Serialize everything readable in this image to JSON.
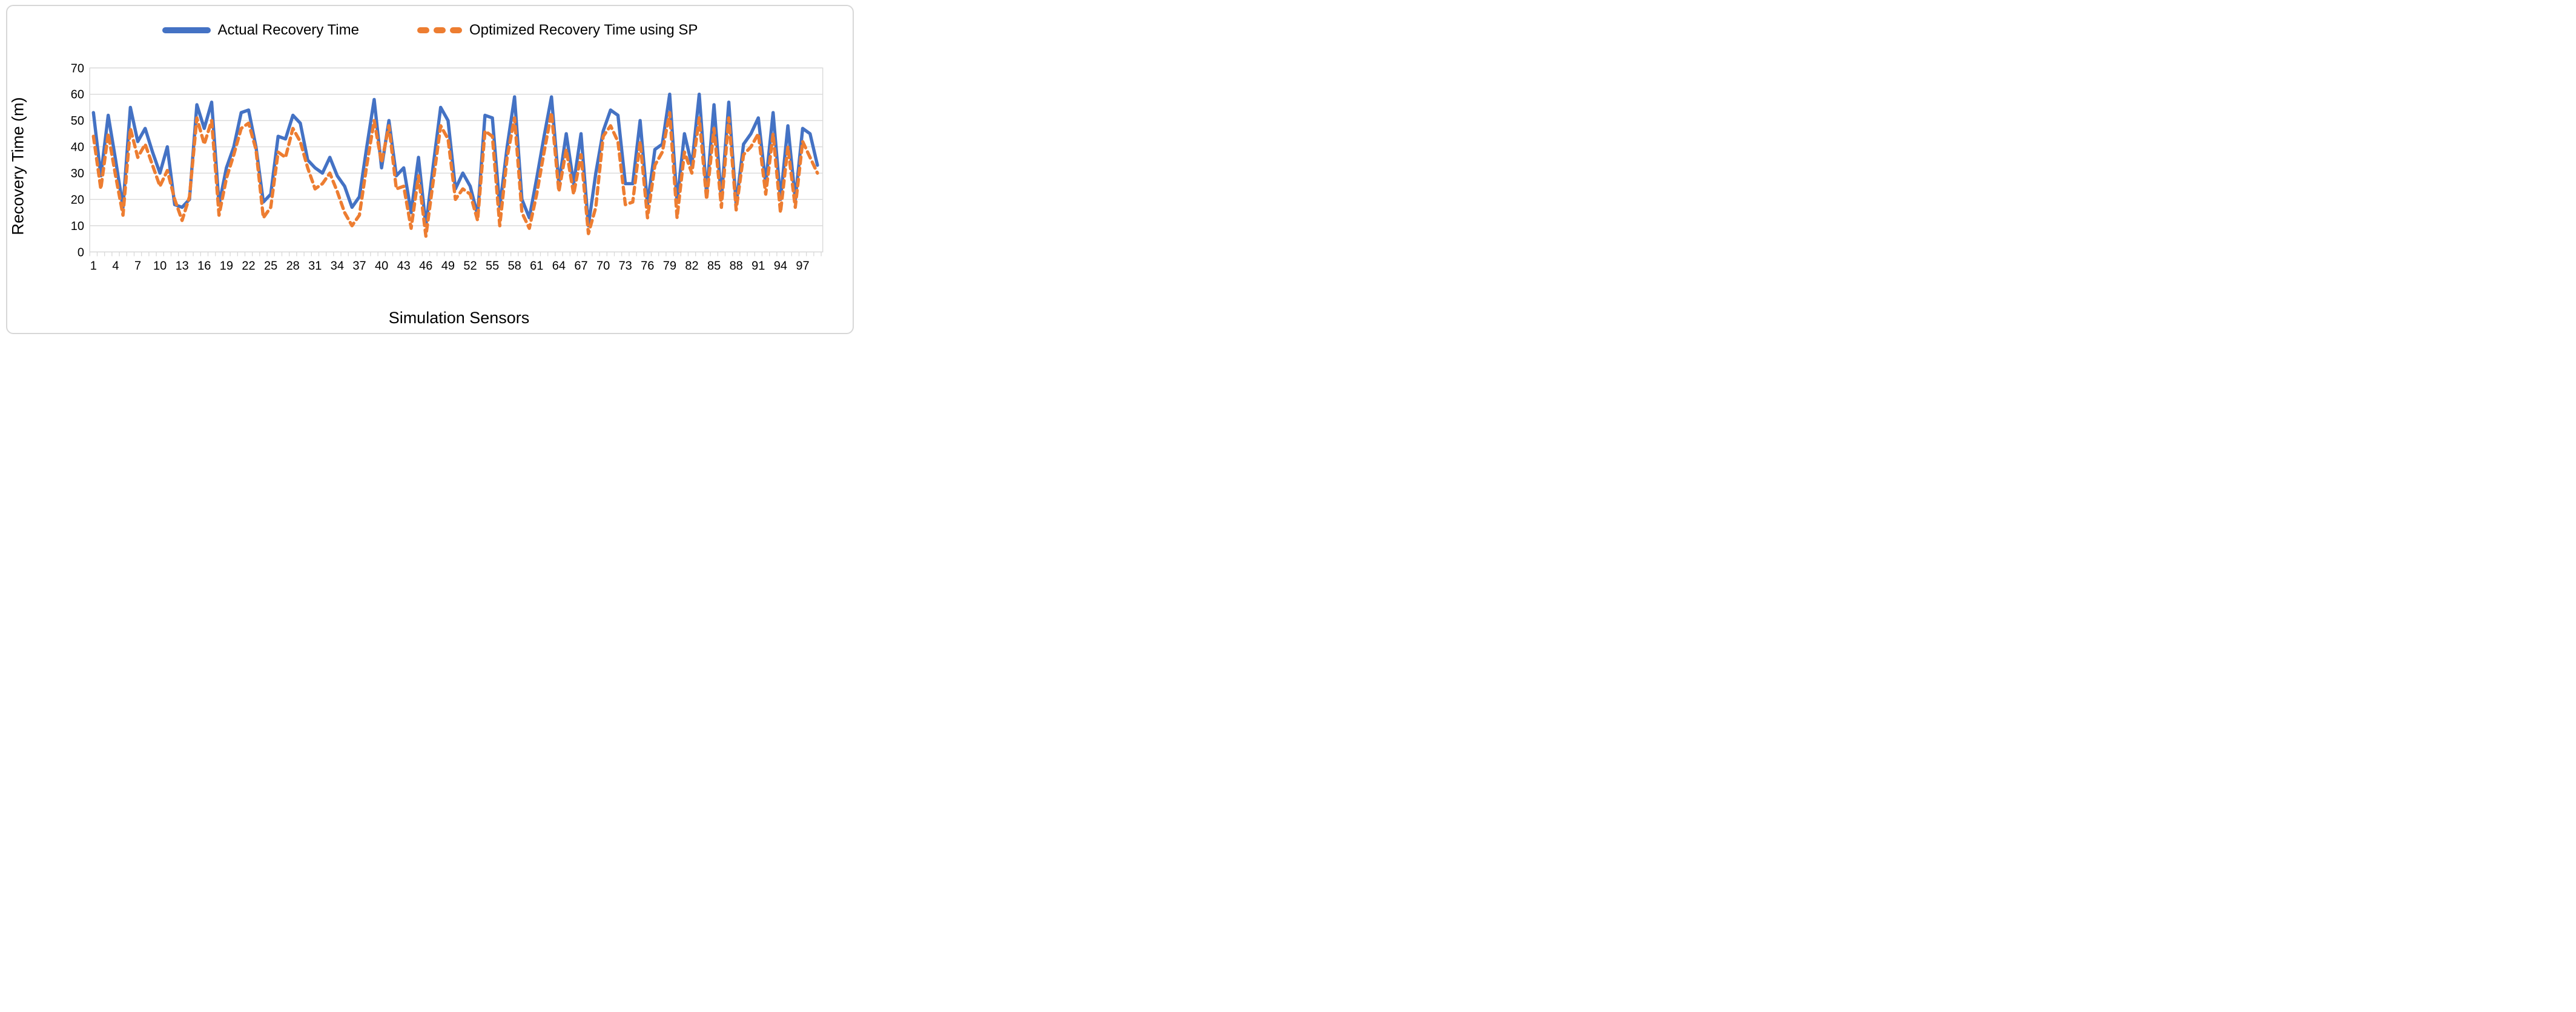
{
  "legend": [
    {
      "label": "Actual Recovery Time",
      "color": "#4472C4",
      "style": "solid"
    },
    {
      "label": "Optimized Recovery Time using SP",
      "color": "#ED7D31",
      "style": "dashed"
    }
  ],
  "chart_data": {
    "type": "line",
    "title": "",
    "xlabel": "Simulation Sensors",
    "ylabel": "Recovery Time (m)",
    "ylim": [
      0,
      70
    ],
    "y_ticks": [
      0,
      10,
      20,
      30,
      40,
      50,
      60,
      70
    ],
    "x_label_start": 1,
    "x_label_interval": 3,
    "x_tick_labels": [
      "1",
      "4",
      "7",
      "10",
      "13",
      "16",
      "19",
      "22",
      "25",
      "28",
      "31",
      "34",
      "37",
      "40",
      "43",
      "46",
      "49",
      "52",
      "55",
      "58",
      "61",
      "64",
      "67",
      "70",
      "73",
      "76",
      "79",
      "82",
      "85",
      "88",
      "91",
      "94",
      "97"
    ],
    "grid": true,
    "legend_position": "top",
    "axis_color": "#D9D9D9",
    "label_color": "#000000",
    "series": [
      {
        "name": "Actual Recovery Time",
        "color": "#4472C4",
        "dash": false,
        "values": [
          53,
          29,
          52,
          35,
          17,
          55,
          42,
          47,
          38,
          30,
          40,
          18,
          17,
          20,
          56,
          47,
          57,
          18,
          32,
          40,
          53,
          54,
          40,
          19,
          22,
          44,
          43,
          52,
          49,
          35,
          32,
          30,
          36,
          29,
          25,
          17,
          21,
          40,
          58,
          32,
          50,
          29,
          32,
          15,
          36,
          10,
          33,
          55,
          50,
          24,
          30,
          25,
          14,
          52,
          51,
          17,
          40,
          59,
          20,
          13,
          28,
          44,
          59,
          26,
          45,
          26,
          45,
          10,
          30,
          46,
          54,
          52,
          26,
          26,
          50,
          18,
          39,
          41,
          60,
          19,
          45,
          33,
          60,
          22,
          56,
          20,
          57,
          18,
          41,
          45,
          51,
          26,
          53,
          20,
          48,
          20,
          47,
          45,
          33
        ]
      },
      {
        "name": "Optimized Recovery Time using SP",
        "color": "#ED7D31",
        "dash": true,
        "values": [
          44,
          24,
          45,
          29,
          14,
          47,
          36,
          41,
          33,
          25,
          31,
          20,
          12,
          21,
          51,
          41,
          50,
          14,
          28,
          37,
          47,
          49,
          39,
          13,
          17,
          38,
          36,
          47,
          42,
          32,
          24,
          26,
          30,
          23,
          15,
          10,
          14,
          33,
          50,
          34,
          48,
          24,
          25,
          9,
          29,
          6,
          27,
          48,
          43,
          20,
          24,
          22,
          12,
          46,
          44,
          10,
          36,
          51,
          15,
          9,
          22,
          38,
          53,
          23,
          39,
          22,
          37,
          7,
          17,
          44,
          48,
          42,
          18,
          19,
          42,
          13,
          33,
          38,
          53,
          13,
          38,
          30,
          51,
          20,
          47,
          17,
          51,
          16,
          37,
          40,
          45,
          22,
          45,
          15,
          40,
          17,
          42,
          36,
          30
        ]
      }
    ]
  }
}
